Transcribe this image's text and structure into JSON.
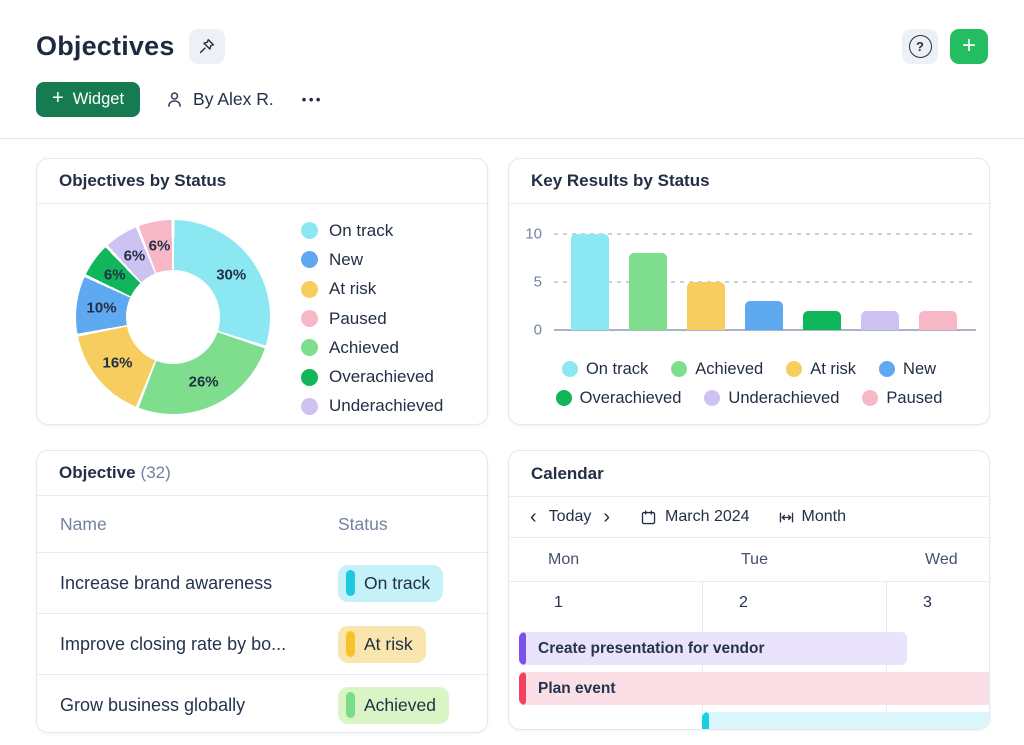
{
  "header": {
    "title": "Objectives",
    "widget_label": "+ Widget",
    "widget_text": "Widget",
    "author": "By Alex R."
  },
  "icons": {
    "plus": "+",
    "question": "?",
    "prev": "‹",
    "next": "›",
    "more": "•••"
  },
  "colors": {
    "text_dark": "#222F45",
    "text_muted": "#72829F",
    "widget_button_green": "#177B52",
    "accent_green": "#24BD62",
    "chip_bg": "#EDF0F5",
    "card_border": "#E3E8F0",
    "status": {
      "On track": "#8BE8F3",
      "New": "#5FA9F0",
      "At risk": "#F7CD60",
      "Paused": "#F7B7C6",
      "Achieved": "#7FDE8D",
      "Overachieved": "#0FB75A",
      "Underachieved": "#CEC2F3"
    }
  },
  "cards": {
    "donut": {
      "title": "Objectives by Status",
      "legend_order": [
        "On track",
        "New",
        "At risk",
        "Paused",
        "Achieved",
        "Overachieved",
        "Underachieved"
      ]
    },
    "bar": {
      "title": "Key Results by Status",
      "legend_rows": [
        [
          "On track",
          "Achieved",
          "At risk",
          "New"
        ],
        [
          "Overachieved",
          "Underachieved",
          "Paused"
        ]
      ]
    },
    "table": {
      "title": "Objective",
      "count": "(32)",
      "columns": [
        "Name",
        "Status"
      ],
      "rows": [
        {
          "name": "Increase brand awareness",
          "status": "On track",
          "badge_bg": "#C6F1F9",
          "badge_bar": "#1FC9E0"
        },
        {
          "name": "Improve closing rate by bo...",
          "status": "At risk",
          "badge_bg": "#FAE5AF",
          "badge_bar": "#F6C32B"
        },
        {
          "name": "Grow business globally",
          "status": "Achieved",
          "badge_bg": "#D9F4C5",
          "badge_bar": "#7ADD8A"
        }
      ]
    },
    "calendar": {
      "title": "Calendar",
      "toolbar": {
        "today": "Today",
        "month_label": "March 2024",
        "view": "Month"
      },
      "weekdays": [
        "Mon",
        "Tue",
        "Wed"
      ],
      "day_numbers": [
        "1",
        "2",
        "3"
      ],
      "events": [
        {
          "title": "Create presentation for vendor",
          "bg": "#E9E4FB",
          "bar": "#7B52E9",
          "col_start": 0,
          "col_end": 1,
          "flush_right": false
        },
        {
          "title": "Plan event",
          "bg": "#FBDFE6",
          "bar": "#F4425E",
          "col_start": 0,
          "col_end": 2,
          "flush_right": true
        },
        {
          "title": "",
          "bg": "#DBF7FB",
          "bar": "#12D2E5",
          "col_start": 1,
          "col_end": 2,
          "flush_right": true
        }
      ]
    }
  },
  "chart_data": [
    {
      "type": "pie",
      "donut": true,
      "title": "Objectives by Status",
      "slices": [
        {
          "label": "On track",
          "pct": 30,
          "pct_label": "30%"
        },
        {
          "label": "Achieved",
          "pct": 26,
          "pct_label": "26%"
        },
        {
          "label": "At risk",
          "pct": 16,
          "pct_label": "16%"
        },
        {
          "label": "New",
          "pct": 10,
          "pct_label": "10%"
        },
        {
          "label": "Overachieved",
          "pct": 6,
          "pct_label": "6%"
        },
        {
          "label": "Underachieved",
          "pct": 6,
          "pct_label": "6%"
        },
        {
          "label": "Paused",
          "pct": 6,
          "pct_label": "6%"
        }
      ],
      "legend_position": "right"
    },
    {
      "type": "bar",
      "title": "Key Results by Status",
      "categories": [
        "On track",
        "Achieved",
        "At risk",
        "New",
        "Overachieved",
        "Underachieved",
        "Paused"
      ],
      "values": [
        10,
        8,
        5,
        3,
        2,
        2,
        2
      ],
      "y_ticks": [
        10,
        5,
        0
      ],
      "ylim": [
        0,
        10
      ],
      "grid": "horizontal-dashed",
      "legend_position": "bottom"
    }
  ]
}
